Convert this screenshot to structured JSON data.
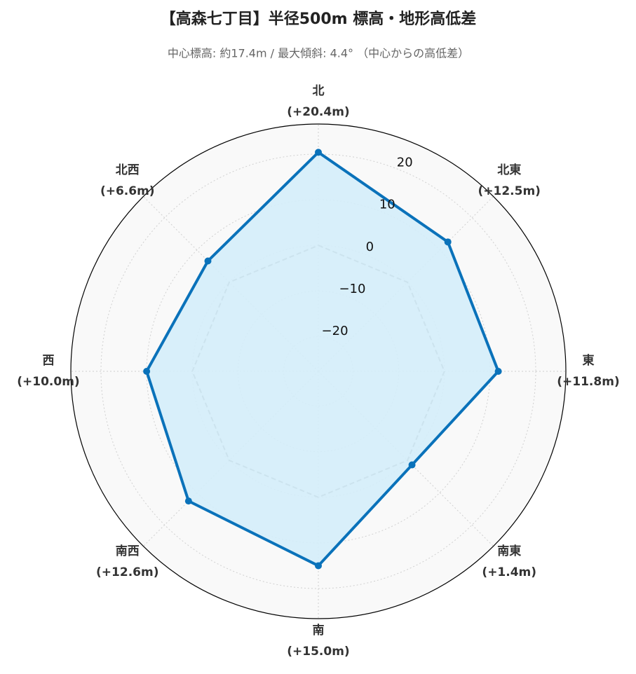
{
  "chart_data": {
    "type": "radar",
    "title": "【高森七丁目】半径500m 標高・地形高低差",
    "subtitle": "中心標高: 約17.4m / 最大傾斜: 4.4° （中心からの高低差）",
    "categories": [
      "北",
      "北東",
      "東",
      "南東",
      "南",
      "南西",
      "西",
      "北西"
    ],
    "values": [
      20.4,
      12.5,
      11.8,
      1.4,
      15.0,
      12.6,
      10.0,
      6.6
    ],
    "value_labels": [
      "(+20.4m)",
      "(+12.5m)",
      "(+11.8m)",
      "(+1.4m)",
      "(+15.0m)",
      "(+12.6m)",
      "(+10.0m)",
      "(+6.6m)"
    ],
    "color": "#0a72ba",
    "fill_color": "#d4edf9",
    "reference": 0,
    "ylim": [
      -27.6,
      26.6
    ],
    "yticks": [
      {
        "value": -20,
        "label": "−20"
      },
      {
        "value": -10,
        "label": "−10"
      },
      0,
      10,
      20
    ],
    "grid": true
  }
}
